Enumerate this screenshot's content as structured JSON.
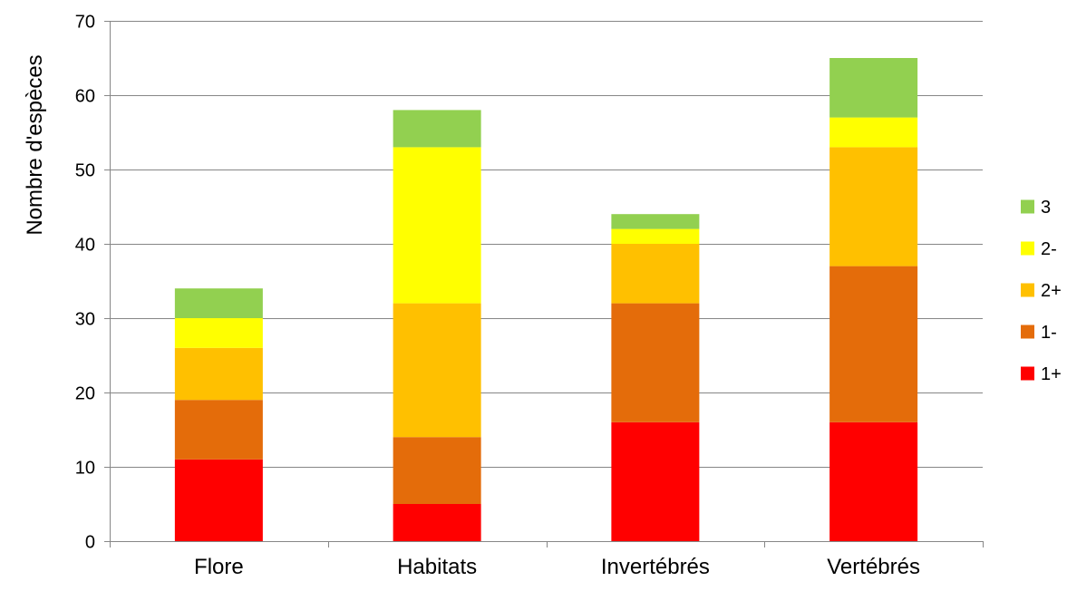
{
  "chart_data": {
    "type": "bar",
    "stacked": true,
    "title": "",
    "xlabel": "",
    "ylabel": "Nombre d'espèces",
    "ylim": [
      0,
      70
    ],
    "yticks": [
      0,
      10,
      20,
      30,
      40,
      50,
      60,
      70
    ],
    "grid": "horizontal",
    "legend_position": "right",
    "categories": [
      "Flore",
      "Habitats",
      "Invertébrés",
      "Vertébrés"
    ],
    "series": [
      {
        "name": "1+",
        "color": "#ff0000",
        "values": [
          11,
          5,
          16,
          16
        ]
      },
      {
        "name": "1-",
        "color": "#e46c0a",
        "values": [
          8,
          9,
          16,
          21
        ]
      },
      {
        "name": "2+",
        "color": "#ffc000",
        "values": [
          7,
          18,
          8,
          16
        ]
      },
      {
        "name": "2-",
        "color": "#ffff00",
        "values": [
          4,
          21,
          2,
          4
        ]
      },
      {
        "name": "3",
        "color": "#92d050",
        "values": [
          4,
          5,
          2,
          8
        ]
      }
    ],
    "legend_order": [
      "3",
      "2-",
      "2+",
      "1-",
      "1+"
    ]
  }
}
